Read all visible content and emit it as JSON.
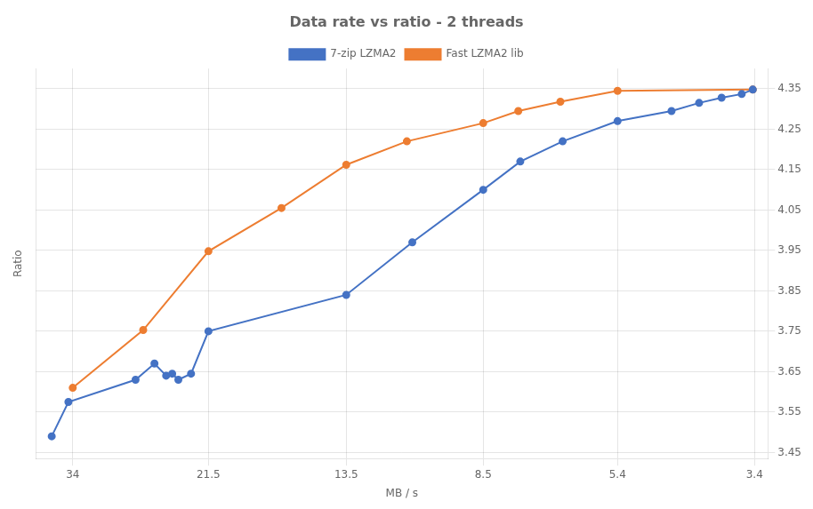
{
  "chart_data": {
    "type": "line",
    "title": "Data rate vs ratio - 2 threads",
    "xlabel": "MB / s",
    "ylabel": "Ratio",
    "log": "x",
    "grid": true,
    "legend": "top",
    "marker": "circle",
    "series": [
      {
        "name": "7-zip LZMA2",
        "color": "#4472c4",
        "x": [
          36.5,
          34.5,
          27.5,
          25.8,
          24.8,
          24.3,
          23.8,
          22.8,
          21.5,
          13.5,
          10.8,
          8.5,
          7.5,
          6.5,
          5.4,
          4.5,
          4.1,
          3.8,
          3.55,
          3.42
        ],
        "values": [
          3.49,
          3.575,
          3.63,
          3.67,
          3.64,
          3.645,
          3.63,
          3.645,
          3.75,
          3.84,
          3.97,
          4.1,
          4.17,
          4.22,
          4.27,
          4.295,
          4.315,
          4.328,
          4.337,
          4.348
        ]
      },
      {
        "name": "Fast LZMA2 lib",
        "color": "#ed7d31",
        "x": [
          34.0,
          26.8,
          21.5,
          16.8,
          13.5,
          11.0,
          8.5,
          7.55,
          6.55,
          5.4,
          3.42
        ],
        "values": [
          3.61,
          3.753,
          3.948,
          4.055,
          4.162,
          4.22,
          4.265,
          4.295,
          4.318,
          4.345,
          4.348
        ]
      }
    ],
    "xlim": [
      38.5,
      3.25
    ],
    "xticks": [
      34,
      21.5,
      13.5,
      8.5,
      5.4,
      3.4
    ],
    "ylim": [
      3.435,
      4.4
    ],
    "yticks": [
      3.45,
      3.55,
      3.65,
      3.75,
      3.85,
      3.95,
      4.05,
      4.15,
      4.25,
      4.35
    ]
  }
}
